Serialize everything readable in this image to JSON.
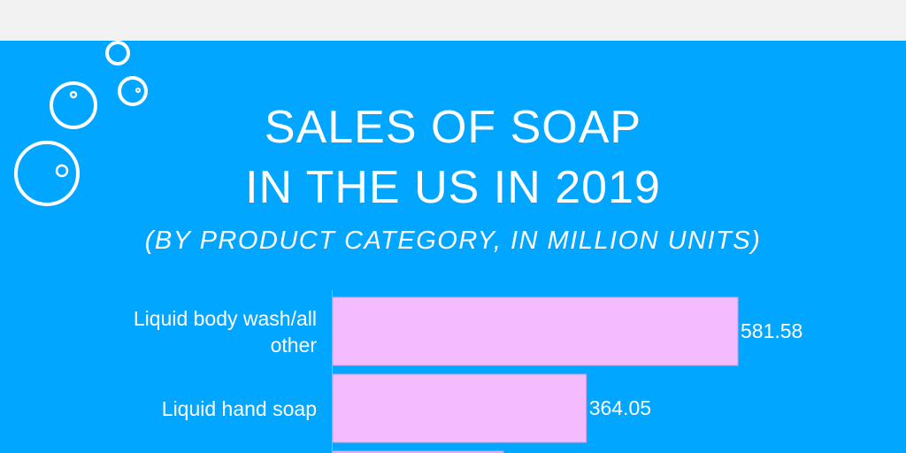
{
  "chart_data": {
    "type": "bar",
    "orientation": "horizontal",
    "title": "SALES OF SOAP\nIN THE US IN 2019",
    "title_lines": [
      "SALES OF SOAP",
      "IN THE US IN 2019"
    ],
    "subtitle": "(BY PRODUCT CATEGORY, IN MILLION UNITS)",
    "categories": [
      "Liquid body wash/all other",
      "Liquid hand soap",
      ""
    ],
    "values": [
      581.58,
      364.05,
      245
    ],
    "value_labels": [
      "581.58",
      "364.05",
      ""
    ],
    "bar_color": "#f5bbff",
    "background_color": "#00a6ff",
    "grid": false,
    "legend": "none"
  },
  "decoration": {
    "icon": "bubbles-icon"
  }
}
